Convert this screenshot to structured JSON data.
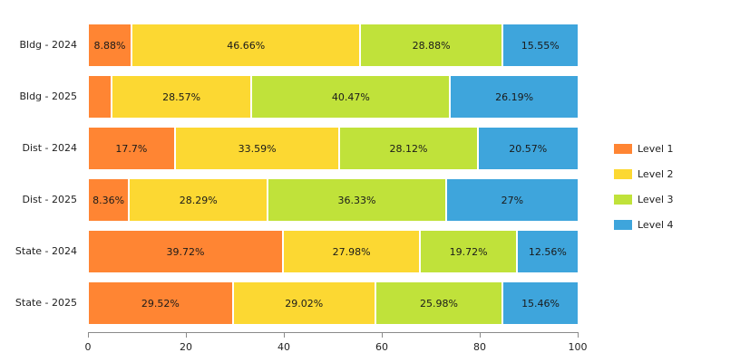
{
  "chart_data": {
    "type": "bar",
    "orientation": "horizontal",
    "stacked": true,
    "title": "",
    "xlabel": "",
    "ylabel": "",
    "xlim": [
      0,
      100
    ],
    "x_ticks": [
      "0",
      "20",
      "40",
      "60",
      "80",
      "100"
    ],
    "grid": false,
    "legend_position": "right",
    "categories": [
      "Bldg - 2024",
      "Bldg - 2025",
      "Dist - 2024",
      "Dist - 2025",
      "State - 2024",
      "State - 2025"
    ],
    "series": [
      {
        "name": "Level 1",
        "color": "#ff8533",
        "values": [
          8.88,
          4.77,
          17.7,
          8.36,
          39.72,
          29.52
        ],
        "labels": [
          "8.88%",
          "",
          "17.7%",
          "8.36%",
          "39.72%",
          "29.52%"
        ]
      },
      {
        "name": "Level 2",
        "color": "#fcd832",
        "values": [
          46.66,
          28.57,
          33.59,
          28.29,
          27.98,
          29.02
        ],
        "labels": [
          "46.66%",
          "28.57%",
          "33.59%",
          "28.29%",
          "27.98%",
          "29.02%"
        ]
      },
      {
        "name": "Level 3",
        "color": "#c0e23a",
        "values": [
          28.88,
          40.47,
          28.12,
          36.33,
          19.72,
          25.98
        ],
        "labels": [
          "28.88%",
          "40.47%",
          "28.12%",
          "36.33%",
          "19.72%",
          "25.98%"
        ]
      },
      {
        "name": "Level 4",
        "color": "#3ea5dc",
        "values": [
          15.55,
          26.19,
          20.57,
          27,
          12.56,
          15.46
        ],
        "labels": [
          "15.55%",
          "26.19%",
          "20.57%",
          "27%",
          "12.56%",
          "15.46%"
        ]
      }
    ]
  }
}
